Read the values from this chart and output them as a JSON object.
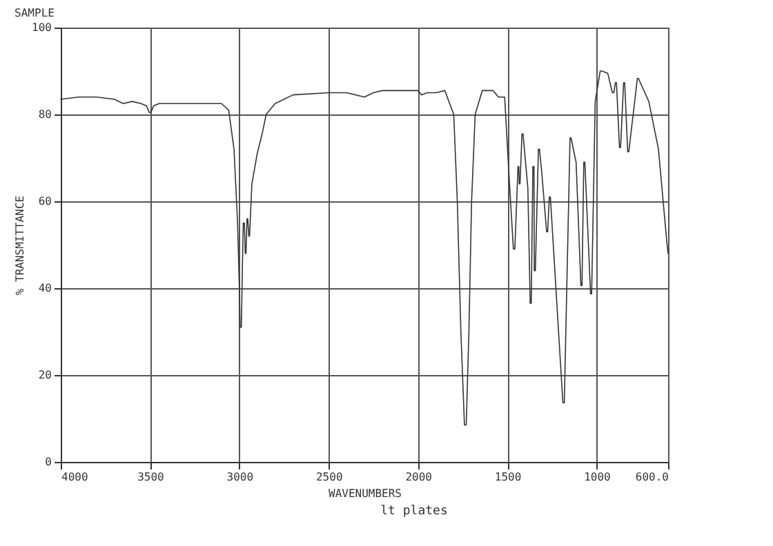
{
  "chart_data": {
    "type": "line",
    "title": "SAMPLE",
    "xlabel": "WAVENUMBERS",
    "ylabel": "% TRANSMITTANCE",
    "annotations": [
      "lt plates"
    ],
    "x": [
      4000,
      3900,
      3800,
      3700,
      3650,
      3600,
      3550,
      3520,
      3505,
      3495,
      3480,
      3450,
      3300,
      3100,
      3060,
      3030,
      3010,
      3000,
      2996,
      2989,
      2983,
      2978,
      2972,
      2967,
      2963,
      2957,
      2953,
      2947,
      2943,
      2930,
      2900,
      2870,
      2850,
      2800,
      2700,
      2500,
      2400,
      2300,
      2250,
      2200,
      2000,
      1980,
      1950,
      1900,
      1850,
      1800,
      1780,
      1760,
      1740,
      1730,
      1715,
      1700,
      1680,
      1640,
      1580,
      1550,
      1515,
      1492,
      1466,
      1458,
      1440,
      1436,
      1433,
      1429,
      1418,
      1412,
      1385,
      1372,
      1366,
      1357,
      1351,
      1349,
      1343,
      1326,
      1320,
      1308,
      1280,
      1274,
      1265,
      1259,
      1189,
      1181,
      1149,
      1143,
      1115,
      1088,
      1082,
      1072,
      1066,
      1034,
      1028,
      1008,
      980,
      970,
      938,
      912,
      904,
      895,
      889,
      872,
      866,
      849,
      843,
      826,
      820,
      772,
      766,
      708,
      654,
      608,
      600
    ],
    "values": [
      83.5,
      84,
      84,
      83.5,
      82.5,
      83,
      82.5,
      82,
      80.5,
      80.5,
      82,
      82.5,
      82.5,
      82.5,
      81,
      72,
      55,
      40,
      31,
      31,
      45,
      55,
      55,
      48,
      48,
      56,
      56,
      52,
      52,
      64,
      71,
      76,
      80,
      82.5,
      84.5,
      85,
      85,
      84,
      85,
      85.5,
      85.5,
      84.5,
      85,
      85,
      85.5,
      80,
      60,
      30,
      8.5,
      8.5,
      30,
      60,
      80,
      85.5,
      85.5,
      84,
      84,
      67,
      49,
      49,
      68,
      68,
      64,
      64,
      75.5,
      75.5,
      63,
      36.5,
      36.5,
      68,
      68,
      44,
      44,
      72,
      72,
      67,
      53,
      53,
      61,
      61,
      13.6,
      13.6,
      74.6,
      74.6,
      69,
      40.6,
      40.6,
      69,
      69,
      38.7,
      38.7,
      83,
      90,
      90,
      89.5,
      85,
      85,
      87.3,
      87.3,
      72.4,
      72.4,
      87.3,
      87.3,
      71.4,
      71.4,
      88.3,
      88.3,
      83,
      72,
      51,
      48
    ],
    "color": "#333333",
    "line_style": "solid",
    "grid": true,
    "xlim": [
      4000,
      600
    ],
    "xticks": [
      4000,
      3500,
      3000,
      2500,
      2000,
      1500,
      1000,
      {
        "value": 600,
        "label": "600.0"
      }
    ],
    "ylim": [
      0,
      100
    ],
    "yticks": [
      0,
      20,
      40,
      60,
      80,
      100
    ]
  }
}
